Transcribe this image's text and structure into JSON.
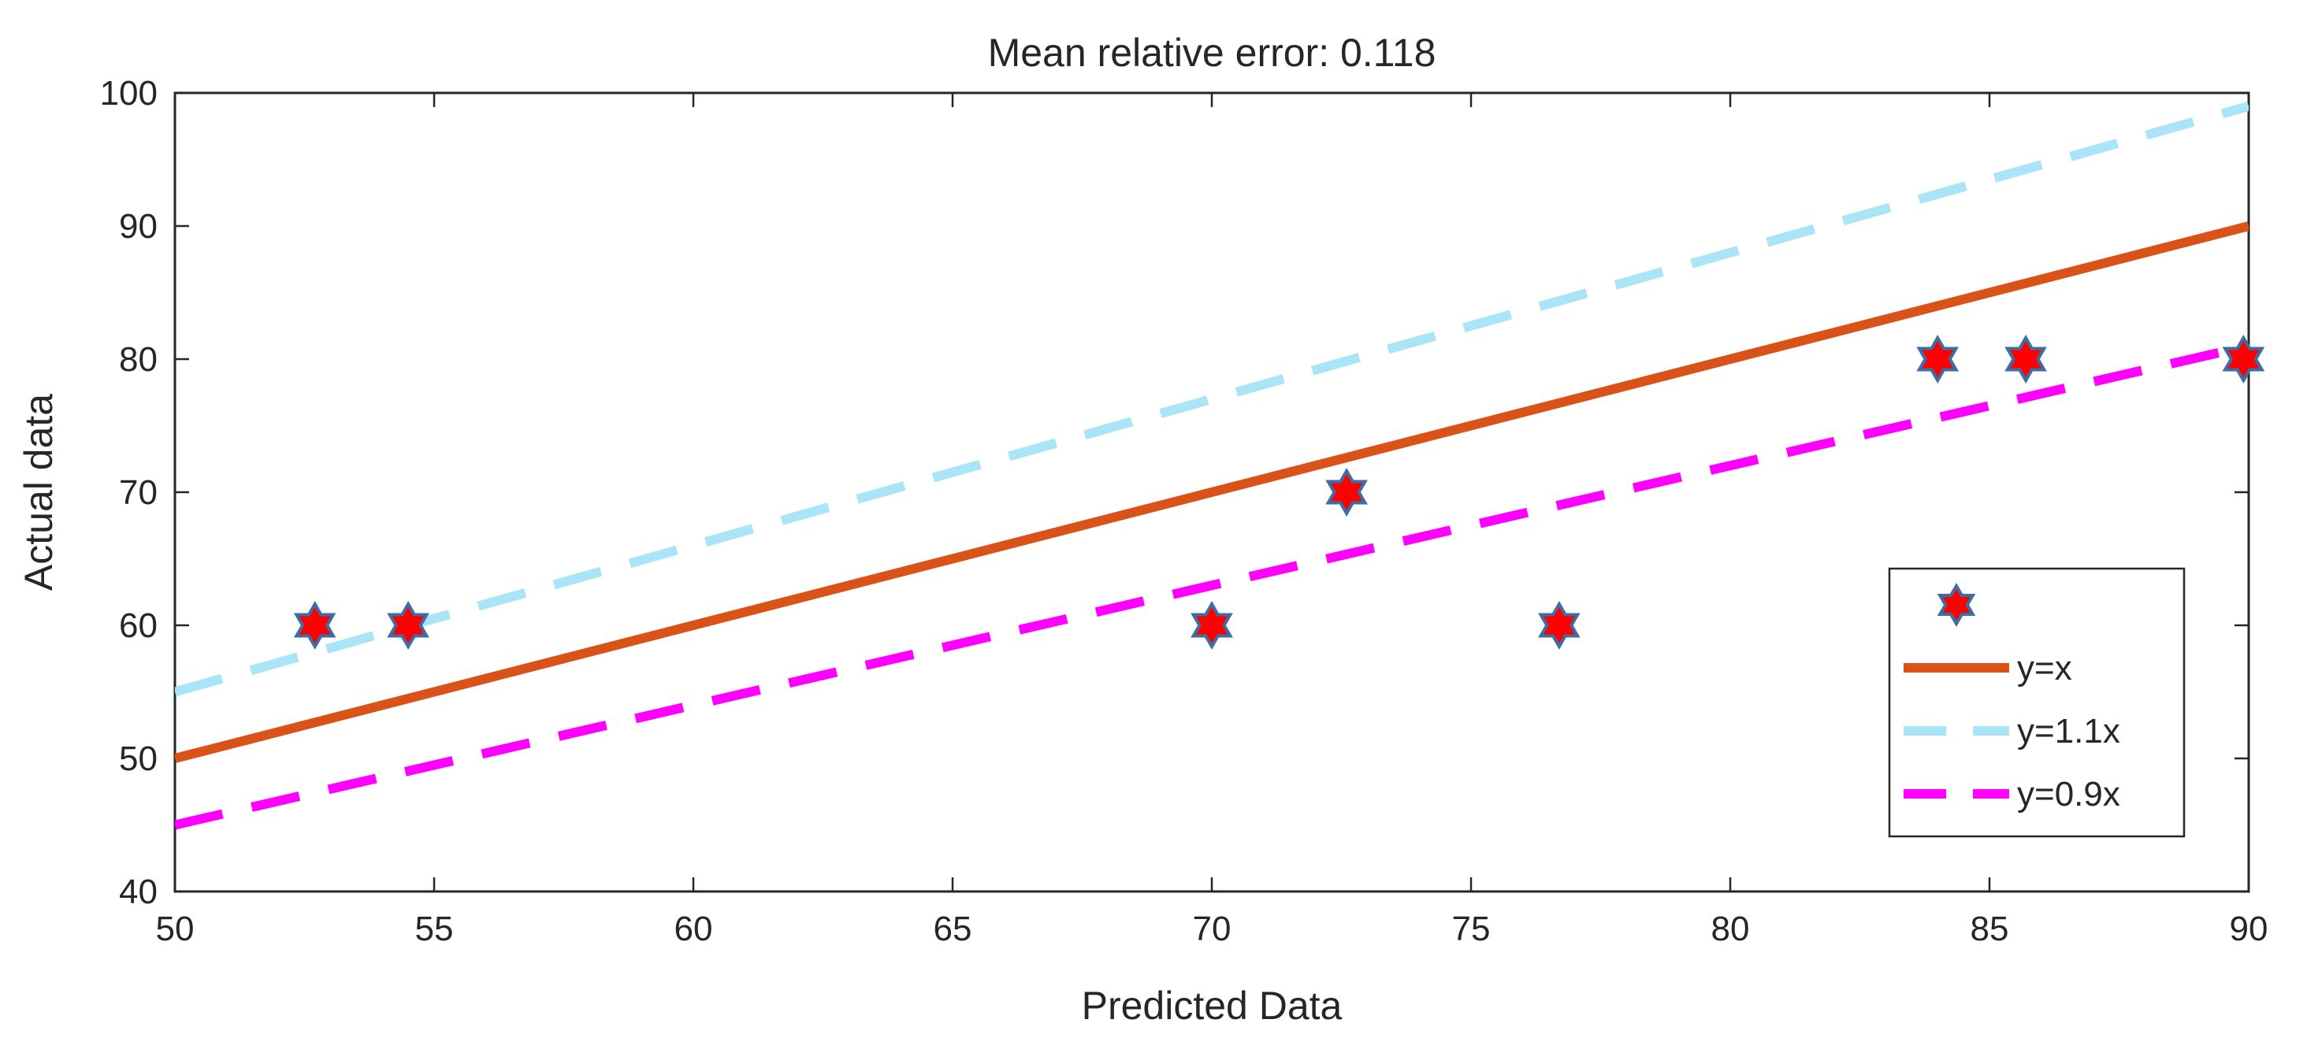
{
  "chart_data": {
    "type": "scatter",
    "title": "Mean relative error: 0.118",
    "xlabel": "Predicted Data",
    "ylabel": "Actual data",
    "xlim": [
      50,
      90
    ],
    "ylim": [
      40,
      100
    ],
    "xticks": [
      "50",
      "55",
      "60",
      "65",
      "70",
      "75",
      "80",
      "85",
      "90"
    ],
    "yticks": [
      "40",
      "50",
      "60",
      "70",
      "80",
      "90",
      "100"
    ],
    "grid": false,
    "legend_position": "bottom-right",
    "points": {
      "name": "",
      "x": [
        52.7,
        54.5,
        70.0,
        72.6,
        76.7,
        84.0,
        85.7,
        89.9
      ],
      "y": [
        60,
        60,
        60,
        70,
        60,
        80,
        80,
        80
      ],
      "marker_fill": "#ff0000",
      "marker_edge": "#3b6ea5"
    },
    "series": [
      {
        "name": "y=x",
        "slope": 1.0,
        "style": "solid",
        "color": "#d95319"
      },
      {
        "name": "y=1.1x",
        "slope": 1.1,
        "style": "dashed",
        "color": "#a9e4f7"
      },
      {
        "name": "y=0.9x",
        "slope": 0.9,
        "style": "dashed",
        "color": "#ff00ff"
      }
    ]
  }
}
